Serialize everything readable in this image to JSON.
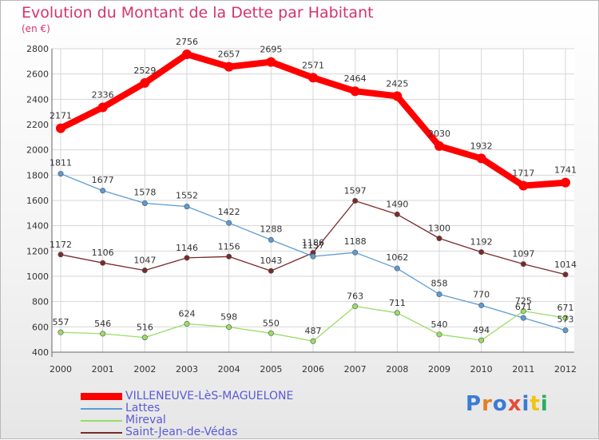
{
  "chart_data": {
    "type": "line",
    "title": "Evolution du Montant de la Dette par Habitant",
    "subtitle": "(en €)",
    "x": [
      "2000",
      "2001",
      "2002",
      "2003",
      "2004",
      "2005",
      "2006",
      "2007",
      "2008",
      "2009",
      "2010",
      "2011",
      "2012"
    ],
    "ylim": [
      400,
      2800
    ],
    "yticks": [
      400,
      600,
      800,
      1000,
      1200,
      1400,
      1600,
      1800,
      2000,
      2200,
      2400,
      2600,
      2800
    ],
    "grid": true,
    "legend_position": "bottom-left",
    "series": [
      {
        "name": "VILLENEUVE-LèS-MAGUELONE",
        "color": "#ff0000",
        "values": [
          2171,
          2336,
          2529,
          2756,
          2657,
          2695,
          2571,
          2464,
          2425,
          2030,
          1932,
          1717,
          1741
        ]
      },
      {
        "name": "Lattes",
        "color": "#5b9bd5",
        "values": [
          1811,
          1677,
          1578,
          1552,
          1422,
          1288,
          1157,
          1188,
          1062,
          858,
          770,
          671,
          573
        ]
      },
      {
        "name": "Mireval",
        "color": "#99dd66",
        "values": [
          557,
          546,
          516,
          624,
          598,
          550,
          487,
          763,
          711,
          540,
          494,
          725,
          671
        ]
      },
      {
        "name": "Saint-Jean-de-Védas",
        "color": "#7a2a2a",
        "values": [
          1172,
          1106,
          1047,
          1146,
          1156,
          1043,
          1186,
          1597,
          1490,
          1300,
          1192,
          1097,
          1014
        ]
      }
    ]
  },
  "logo": {
    "text": "Proxiti",
    "colors": [
      "#3a7bd5",
      "#e67e22",
      "#3a7bd5",
      "#e74c3c",
      "#3a7bd5",
      "#f1c40f",
      "#27ae60"
    ]
  }
}
